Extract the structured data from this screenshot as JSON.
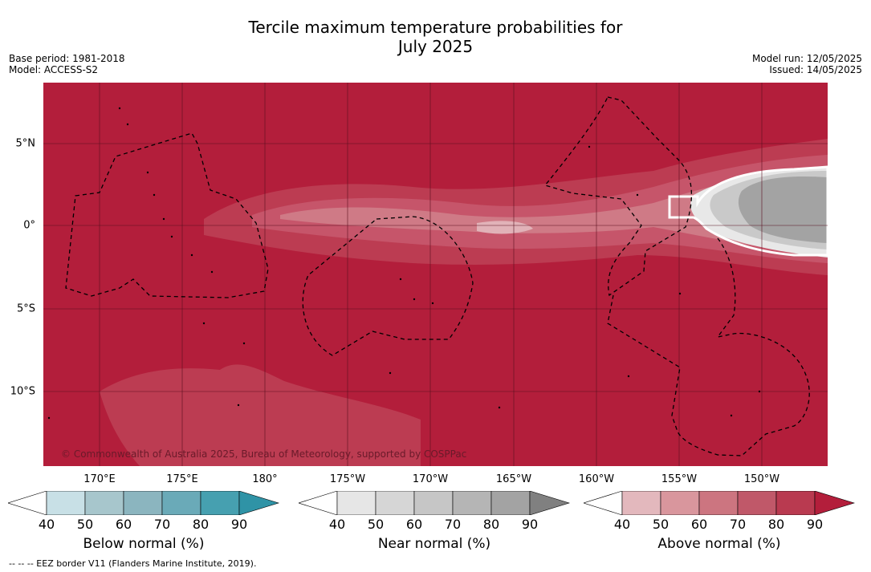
{
  "title_line1": "Tercile maximum temperature probabilities for",
  "title_line2": "July 2025",
  "meta_left": {
    "base_period": "Base period: 1981-2018",
    "model": "Model: ACCESS-S2"
  },
  "meta_right": {
    "model_run": "Model run: 12/05/2025",
    "issued": "Issued: 14/05/2025"
  },
  "map": {
    "lat_labels": [
      "5°N",
      "0°",
      "5°S",
      "10°S"
    ],
    "lon_labels": [
      "170°E",
      "175°E",
      "180°",
      "175°W",
      "170°W",
      "165°W",
      "160°W",
      "155°W",
      "150°W"
    ],
    "copyright": "© Commonwealth of Australia 2025, Bureau of Meteorology, supported by COSPPac",
    "background_color": "#b31e3b"
  },
  "colorbars": [
    {
      "title": "Below normal (%)",
      "ticks": [
        "40",
        "50",
        "60",
        "70",
        "80",
        "90"
      ],
      "colors": [
        "#ffffff",
        "#c8e0e6",
        "#a7c6cc",
        "#8bb5bf",
        "#6aaab8",
        "#46a0b0",
        "#2f93a6"
      ]
    },
    {
      "title": "Near normal (%)",
      "ticks": [
        "40",
        "50",
        "60",
        "70",
        "80",
        "90"
      ],
      "colors": [
        "#ffffff",
        "#e6e6e6",
        "#d6d6d6",
        "#c6c6c6",
        "#b5b5b5",
        "#a3a3a3",
        "#808080"
      ]
    },
    {
      "title": "Above normal (%)",
      "ticks": [
        "40",
        "50",
        "60",
        "70",
        "80",
        "90"
      ],
      "colors": [
        "#ffffff",
        "#e3b8bd",
        "#d9969d",
        "#cc7580",
        "#c05869",
        "#b93a50",
        "#b31e3b"
      ]
    }
  ],
  "footnote": "--  --  -- EEZ border V11 (Flanders Marine Institute, 2019)."
}
